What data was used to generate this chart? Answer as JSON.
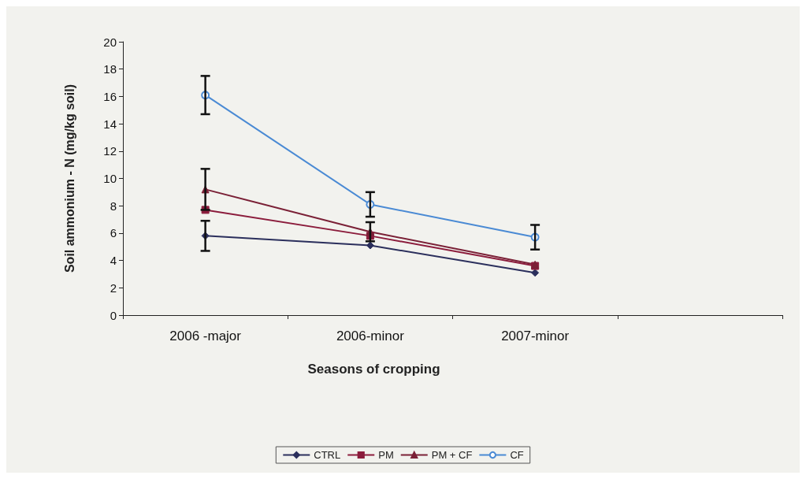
{
  "chart_data": {
    "type": "line",
    "xlabel": "Seasons of cropping",
    "ylabel": "Soil ammonium - N (mg/kg soil)",
    "categories": [
      "2006 -major",
      "2006-minor",
      "2007-minor",
      null
    ],
    "ylim": [
      0,
      20
    ],
    "yticks": [
      0,
      2,
      4,
      6,
      8,
      10,
      12,
      14,
      16,
      18,
      20
    ],
    "grid": false,
    "legend": "bottom",
    "series": [
      {
        "name": "CTRL",
        "color": "#2b2f5c",
        "marker": "diamond",
        "values": [
          5.8,
          5.1,
          3.1,
          null
        ],
        "errors": [
          1.1,
          null,
          null,
          null
        ]
      },
      {
        "name": "PM",
        "color": "#8b1c3c",
        "marker": "square",
        "values": [
          7.7,
          5.8,
          3.6,
          null
        ],
        "errors": [
          null,
          null,
          null,
          null
        ]
      },
      {
        "name": "PM + CF",
        "color": "#7a2036",
        "marker": "triangle",
        "values": [
          9.2,
          6.1,
          3.7,
          null
        ],
        "errors": [
          1.5,
          0.7,
          null,
          null
        ]
      },
      {
        "name": "CF",
        "color": "#4a8ad4",
        "marker": "circle",
        "values": [
          16.1,
          8.1,
          5.7,
          null
        ],
        "errors": [
          1.4,
          0.9,
          0.9,
          null
        ]
      }
    ]
  }
}
